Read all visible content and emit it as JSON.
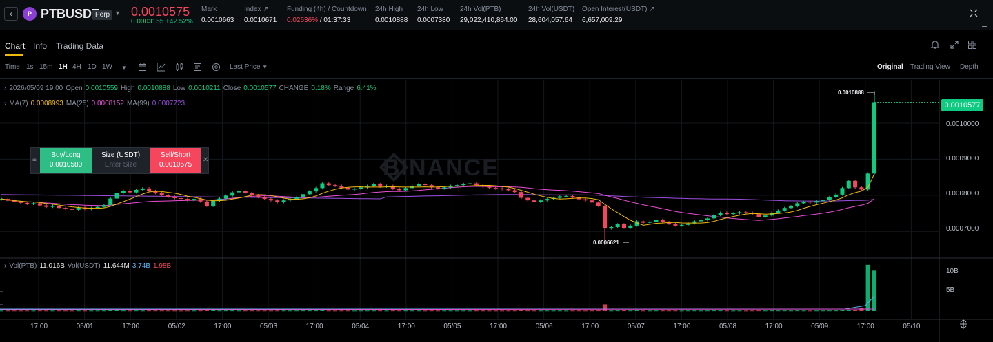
{
  "header": {
    "symbol": "PTBUSDT",
    "contract_type": "Perp",
    "coin_logo_text": "P",
    "last_price": "0.0010575",
    "change": "0.0003155 +42.52%",
    "stats": [
      {
        "label": "Mark",
        "value": "0.0010663"
      },
      {
        "label": "Index ↗",
        "value": "0.0010671"
      },
      {
        "label": "Funding (4h) / Countdown",
        "value_red": "0.02636%",
        "value": " / 01:37:33"
      },
      {
        "label": "24h High",
        "value": "0.0010888"
      },
      {
        "label": "24h Low",
        "value": "0.0007380"
      },
      {
        "label": "24h Vol(PTB)",
        "value": "29,022,410,864.00"
      },
      {
        "label": "24h Vol(USDT)",
        "value": "28,604,057.64"
      },
      {
        "label": "Open Interest(USDT) ↗",
        "value": "6,657,009.29"
      }
    ]
  },
  "tabs": {
    "chart": "Chart",
    "info": "Info",
    "trading_data": "Trading Data"
  },
  "toolbar": {
    "timeframes": [
      "Time",
      "1s",
      "15m",
      "1H",
      "4H",
      "1D",
      "1W"
    ],
    "active_timeframe": "1H",
    "price_type": "Last Price",
    "views": [
      "Original",
      "Trading View",
      "Depth"
    ],
    "active_view": "Original"
  },
  "legend": {
    "date": "2026/05/09 19:00",
    "open_label": "Open",
    "open": "0.0010559",
    "high_label": "High",
    "high": "0.0010888",
    "low_label": "Low",
    "low": "0.0010211",
    "close_label": "Close",
    "close": "0.0010577",
    "change_label": "CHANGE",
    "change": "0.18%",
    "range_label": "Range",
    "range": "6.41%",
    "ma7_label": "MA(7)",
    "ma7": "0.0008993",
    "ma25_label": "MA(25)",
    "ma25": "0.0008152",
    "ma99_label": "MA(99)",
    "ma99": "0.0007723",
    "vol_label": "Vol(PTB)",
    "vol": "11.016B",
    "volusdt_label": "Vol(USDT)",
    "volusdt": "11.644M",
    "vol_ma1": "3.74B",
    "vol_ma2": "1.98B"
  },
  "order_widget": {
    "buy_label": "Buy/Long",
    "buy_price": "0.0010580",
    "size_label": "Size (USDT)",
    "size_placeholder": "Enter Size",
    "sell_label": "Sell/Short",
    "sell_price": "0.0010575"
  },
  "watermark": "BINANCE",
  "colors": {
    "up": "#0ecb81",
    "down": "#f6465d",
    "accent": "#f0b90b",
    "ma7": "#f0b90b",
    "ma25": "#e84fd6",
    "ma99": "#9b4fe0"
  },
  "chart_data": {
    "type": "candlestick",
    "title": "",
    "interval": "1H",
    "last_price": "0.0010577",
    "price_ticks": [
      "0.0010000",
      "0.0009000",
      "0.0008000",
      "0.0007000"
    ],
    "price_tick_values": [
      0.001,
      0.0009,
      0.0008,
      0.0007
    ],
    "ylim": [
      0.00063,
      0.00112
    ],
    "volume_ticks": [
      "10B",
      "5B"
    ],
    "volume_tick_values": [
      10,
      5
    ],
    "volume_ylim": [
      0,
      13.5
    ],
    "time_ticks": [
      "17:00",
      "05/01",
      "17:00",
      "05/02",
      "17:00",
      "05/03",
      "17:00",
      "05/04",
      "17:00",
      "05/05",
      "17:00",
      "05/06",
      "17:00",
      "05/07",
      "17:00",
      "05/08",
      "17:00",
      "05/09",
      "17:00",
      "05/10"
    ],
    "high_marker": "0.0010888",
    "low_marker": "0.0006621",
    "close_series": [
      0.00079,
      0.000785,
      0.000781,
      0.000779,
      0.000776,
      0.000778,
      0.000772,
      0.000768,
      0.000771,
      0.000765,
      0.000762,
      0.00076,
      0.000766,
      0.000762,
      0.000765,
      0.000768,
      0.000773,
      0.000791,
      0.000806,
      0.000813,
      0.000808,
      0.000815,
      0.000819,
      0.000812,
      0.000806,
      0.0008,
      0.000796,
      0.000792,
      0.00079,
      0.000786,
      0.00079,
      0.000783,
      0.000771,
      0.000785,
      0.000791,
      0.000799,
      0.000808,
      0.000812,
      0.000806,
      0.0008,
      0.000795,
      0.00079,
      0.000786,
      0.000781,
      0.000786,
      0.00079,
      0.000795,
      0.000803,
      0.000811,
      0.00082,
      0.000833,
      0.000828,
      0.000826,
      0.000821,
      0.000816,
      0.000818,
      0.000822,
      0.000826,
      0.000831,
      0.000824,
      0.000826,
      0.000818,
      0.000814,
      0.00082,
      0.000826,
      0.000831,
      0.000828,
      0.000822,
      0.000819,
      0.000822,
      0.000826,
      0.000828,
      0.000831,
      0.000833,
      0.000828,
      0.000824,
      0.000821,
      0.000819,
      0.000817,
      0.000814,
      0.000809,
      0.000793,
      0.000786,
      0.000782,
      0.000786,
      0.00079,
      0.000793,
      0.000797,
      0.000798,
      0.000794,
      0.000789,
      0.000786,
      0.00078,
      0.000771,
      0.000708,
      0.000712,
      0.00072,
      0.00071,
      0.000716,
      0.000728,
      0.000724,
      0.000727,
      0.000732,
      0.000726,
      0.000721,
      0.000716,
      0.000718,
      0.000722,
      0.000728,
      0.000731,
      0.000736,
      0.000745,
      0.000752,
      0.000748,
      0.00075,
      0.000753,
      0.000752,
      0.000748,
      0.00074,
      0.000744,
      0.000752,
      0.000758,
      0.000765,
      0.00077,
      0.000778,
      0.000782,
      0.00078,
      0.000784,
      0.000788,
      0.000795,
      0.000802,
      0.00082,
      0.00084,
      0.000822,
      0.000816,
      0.00086,
      0.001058
    ]
  }
}
